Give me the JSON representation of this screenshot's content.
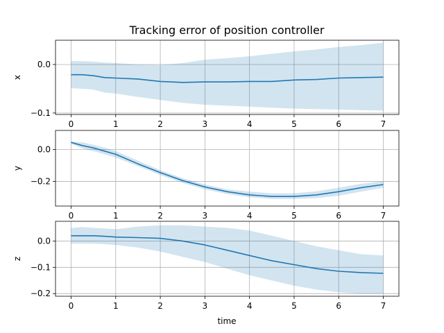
{
  "chart_data": {
    "type": "line",
    "title": "Tracking error of position controller",
    "xlabel": "time",
    "x_ticks": [
      0,
      1,
      2,
      3,
      4,
      5,
      6,
      7
    ],
    "xlim": [
      -0.35,
      7.35
    ],
    "grid": true,
    "colors": {
      "line": "#1f77b4",
      "band": "#1f77b4",
      "band_opacity": 0.2
    },
    "subplots": [
      {
        "ylabel": "x",
        "ylim": [
          -0.103,
          0.05
        ],
        "y_ticks": [
          0.0,
          -0.1
        ],
        "y_tick_labels": [
          "0.0",
          "−0.1"
        ],
        "x": [
          0,
          0.25,
          0.5,
          0.75,
          1,
          1.5,
          2,
          2.5,
          3,
          3.5,
          4,
          4.5,
          5,
          5.5,
          6,
          6.5,
          7
        ],
        "mean": [
          -0.021,
          -0.021,
          -0.023,
          -0.027,
          -0.028,
          -0.03,
          -0.035,
          -0.037,
          -0.036,
          -0.036,
          -0.035,
          -0.035,
          -0.032,
          -0.031,
          -0.028,
          -0.027,
          -0.026
        ],
        "lower": [
          -0.049,
          -0.05,
          -0.052,
          -0.058,
          -0.06,
          -0.067,
          -0.073,
          -0.079,
          -0.083,
          -0.085,
          -0.087,
          -0.089,
          -0.091,
          -0.092,
          -0.093,
          -0.094,
          -0.095
        ],
        "upper": [
          0.007,
          0.007,
          0.006,
          0.004,
          0.003,
          0.0,
          -0.001,
          0.003,
          0.01,
          0.013,
          0.017,
          0.022,
          0.027,
          0.031,
          0.036,
          0.04,
          0.045
        ]
      },
      {
        "ylabel": "y",
        "ylim": [
          -0.355,
          0.12
        ],
        "y_ticks": [
          0.0,
          -0.2
        ],
        "y_tick_labels": [
          "0.0",
          "−0.2"
        ],
        "x": [
          0,
          0.25,
          0.5,
          0.75,
          1,
          1.5,
          2,
          2.5,
          3,
          3.5,
          4,
          4.5,
          5,
          5.5,
          6,
          6.5,
          7
        ],
        "mean": [
          0.045,
          0.025,
          0.01,
          -0.01,
          -0.03,
          -0.09,
          -0.145,
          -0.195,
          -0.235,
          -0.265,
          -0.285,
          -0.295,
          -0.295,
          -0.285,
          -0.265,
          -0.24,
          -0.22
        ],
        "lower": [
          0.035,
          0.007,
          -0.01,
          -0.03,
          -0.05,
          -0.105,
          -0.16,
          -0.21,
          -0.25,
          -0.28,
          -0.3,
          -0.31,
          -0.31,
          -0.305,
          -0.29,
          -0.265,
          -0.24
        ],
        "upper": [
          0.05,
          0.045,
          0.03,
          0.012,
          -0.01,
          -0.07,
          -0.13,
          -0.18,
          -0.22,
          -0.25,
          -0.265,
          -0.275,
          -0.275,
          -0.262,
          -0.24,
          -0.215,
          -0.2
        ]
      },
      {
        "ylabel": "z",
        "ylim": [
          -0.21,
          0.075
        ],
        "y_ticks": [
          0.0,
          -0.1,
          -0.2
        ],
        "y_tick_labels": [
          "0.0",
          "−0.1",
          "−0.2"
        ],
        "x": [
          0,
          0.25,
          0.5,
          0.75,
          1,
          1.5,
          2,
          2.5,
          3,
          3.5,
          4,
          4.5,
          5,
          5.5,
          6,
          6.5,
          7
        ],
        "mean": [
          0.02,
          0.02,
          0.02,
          0.018,
          0.015,
          0.013,
          0.01,
          0.0,
          -0.015,
          -0.035,
          -0.055,
          -0.075,
          -0.09,
          -0.105,
          -0.115,
          -0.12,
          -0.123
        ],
        "lower": [
          -0.01,
          -0.01,
          -0.01,
          -0.012,
          -0.015,
          -0.025,
          -0.04,
          -0.06,
          -0.08,
          -0.105,
          -0.13,
          -0.15,
          -0.17,
          -0.185,
          -0.195,
          -0.2,
          -0.2
        ],
        "upper": [
          0.05,
          0.053,
          0.05,
          0.048,
          0.045,
          0.055,
          0.06,
          0.06,
          0.055,
          0.05,
          0.04,
          0.02,
          0.0,
          -0.02,
          -0.035,
          -0.05,
          -0.055
        ]
      }
    ]
  }
}
